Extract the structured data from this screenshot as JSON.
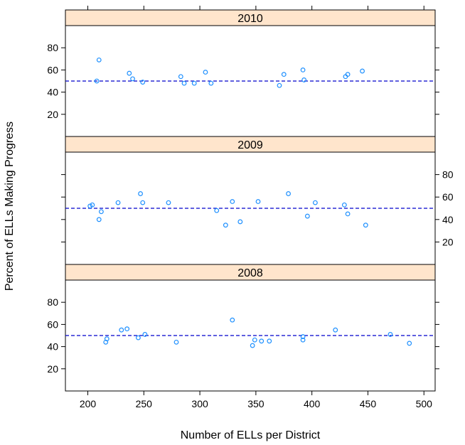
{
  "chart_data": {
    "type": "scatter",
    "xlabel": "Number of ELLs per District",
    "ylabel": "Percent of ELLs Making Progress",
    "xlim": [
      180,
      510
    ],
    "ylim": [
      0,
      100
    ],
    "x_ticks": [
      "200",
      "250",
      "300",
      "350",
      "400",
      "450",
      "500"
    ],
    "y_ticks": [
      "20",
      "40",
      "60",
      "80"
    ],
    "reference_line_y": 50,
    "point_color": "#1E90FF",
    "reference_line_color": "#0000CC",
    "strip_color": "#FFE5CC",
    "panels": [
      {
        "strip_label": "2010",
        "points": [
          {
            "x": 208,
            "y": 50
          },
          {
            "x": 210,
            "y": 69
          },
          {
            "x": 237,
            "y": 57
          },
          {
            "x": 240,
            "y": 52
          },
          {
            "x": 249,
            "y": 49
          },
          {
            "x": 283,
            "y": 54
          },
          {
            "x": 286,
            "y": 48
          },
          {
            "x": 295,
            "y": 48
          },
          {
            "x": 305,
            "y": 58
          },
          {
            "x": 310,
            "y": 48
          },
          {
            "x": 371,
            "y": 46
          },
          {
            "x": 375,
            "y": 56
          },
          {
            "x": 392,
            "y": 60
          },
          {
            "x": 393,
            "y": 51
          },
          {
            "x": 430,
            "y": 54
          },
          {
            "x": 432,
            "y": 56
          },
          {
            "x": 445,
            "y": 59
          }
        ]
      },
      {
        "strip_label": "2009",
        "points": [
          {
            "x": 202,
            "y": 52
          },
          {
            "x": 204,
            "y": 53
          },
          {
            "x": 210,
            "y": 40
          },
          {
            "x": 212,
            "y": 47
          },
          {
            "x": 227,
            "y": 55
          },
          {
            "x": 247,
            "y": 63
          },
          {
            "x": 249,
            "y": 55
          },
          {
            "x": 272,
            "y": 55
          },
          {
            "x": 315,
            "y": 48
          },
          {
            "x": 323,
            "y": 35
          },
          {
            "x": 329,
            "y": 56
          },
          {
            "x": 336,
            "y": 38
          },
          {
            "x": 352,
            "y": 56
          },
          {
            "x": 379,
            "y": 63
          },
          {
            "x": 396,
            "y": 43
          },
          {
            "x": 403,
            "y": 55
          },
          {
            "x": 429,
            "y": 53
          },
          {
            "x": 432,
            "y": 45
          },
          {
            "x": 448,
            "y": 35
          }
        ]
      },
      {
        "strip_label": "2008",
        "points": [
          {
            "x": 216,
            "y": 44
          },
          {
            "x": 217,
            "y": 47
          },
          {
            "x": 230,
            "y": 55
          },
          {
            "x": 235,
            "y": 56
          },
          {
            "x": 245,
            "y": 48
          },
          {
            "x": 251,
            "y": 51
          },
          {
            "x": 279,
            "y": 44
          },
          {
            "x": 329,
            "y": 64
          },
          {
            "x": 347,
            "y": 41
          },
          {
            "x": 349,
            "y": 46
          },
          {
            "x": 355,
            "y": 45
          },
          {
            "x": 362,
            "y": 45
          },
          {
            "x": 392,
            "y": 49
          },
          {
            "x": 392,
            "y": 46
          },
          {
            "x": 421,
            "y": 55
          },
          {
            "x": 470,
            "y": 51
          },
          {
            "x": 487,
            "y": 43
          }
        ]
      }
    ]
  }
}
